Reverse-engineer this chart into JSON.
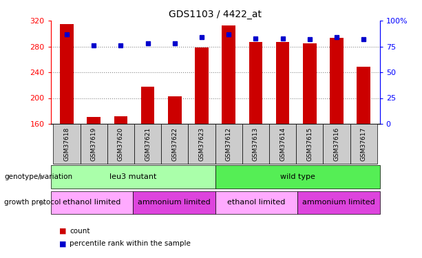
{
  "title": "GDS1103 / 4422_at",
  "samples": [
    "GSM37618",
    "GSM37619",
    "GSM37620",
    "GSM37621",
    "GSM37622",
    "GSM37623",
    "GSM37612",
    "GSM37613",
    "GSM37614",
    "GSM37615",
    "GSM37616",
    "GSM37617"
  ],
  "counts": [
    315,
    171,
    172,
    218,
    203,
    278,
    313,
    287,
    287,
    285,
    293,
    249
  ],
  "percentiles": [
    87,
    76,
    76,
    78,
    78,
    84,
    87,
    83,
    83,
    82,
    84,
    82
  ],
  "ymin": 160,
  "ymax": 320,
  "yticks": [
    160,
    200,
    240,
    280,
    320
  ],
  "y2min": 0,
  "y2max": 100,
  "y2ticks": [
    0,
    25,
    50,
    75,
    100
  ],
  "bar_color": "#cc0000",
  "dot_color": "#0000cc",
  "genotype_groups": [
    {
      "label": "leu3 mutant",
      "start": 0,
      "end": 6,
      "color": "#aaffaa"
    },
    {
      "label": "wild type",
      "start": 6,
      "end": 12,
      "color": "#55ee55"
    }
  ],
  "protocol_groups": [
    {
      "label": "ethanol limited",
      "start": 0,
      "end": 3,
      "color": "#ffaaff"
    },
    {
      "label": "ammonium limited",
      "start": 3,
      "end": 6,
      "color": "#dd44dd"
    },
    {
      "label": "ethanol limited",
      "start": 6,
      "end": 9,
      "color": "#ffaaff"
    },
    {
      "label": "ammonium limited",
      "start": 9,
      "end": 12,
      "color": "#dd44dd"
    }
  ],
  "legend_count_label": "count",
  "legend_pct_label": "percentile rank within the sample",
  "genotype_label": "genotype/variation",
  "protocol_label": "growth protocol",
  "grid_color": "#888888",
  "tick_label_bg": "#cccccc"
}
